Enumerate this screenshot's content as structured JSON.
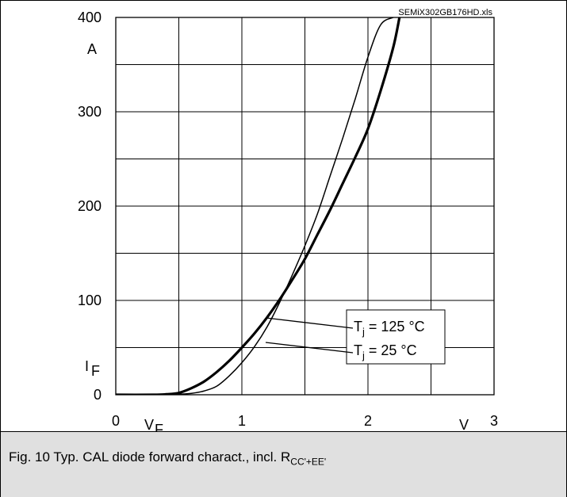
{
  "chart_data": {
    "type": "line",
    "source_file": "SEMiX302GB176HD.xls",
    "xlabel": "V",
    "xlabel_symbol": "V",
    "xlabel_sub": "F",
    "ylabel": "A",
    "ylabel_symbol": "I",
    "ylabel_sub": "F",
    "xlim": [
      0,
      3
    ],
    "ylim": [
      0,
      400
    ],
    "x_ticks": [
      "0",
      "1",
      "2",
      "3"
    ],
    "y_ticks": [
      "0",
      "100",
      "200",
      "300",
      "400"
    ],
    "grid": true,
    "series": [
      {
        "name": "Tj = 125 °C",
        "label_pre": "T",
        "label_sub": "j",
        "label_post": " = 125 °C",
        "line_weight": "thick",
        "x": [
          0,
          0.3,
          0.4,
          0.5,
          0.6,
          0.7,
          0.8,
          0.9,
          1.0,
          1.1,
          1.2,
          1.3,
          1.4,
          1.5,
          1.6,
          1.7,
          1.8,
          1.9,
          2.0,
          2.1,
          2.2,
          2.25
        ],
        "y": [
          0,
          0,
          0.5,
          2,
          7,
          14,
          24,
          36,
          50,
          65,
          82,
          101,
          122,
          144,
          170,
          196,
          224,
          252,
          282,
          322,
          368,
          400
        ]
      },
      {
        "name": "Tj = 25 °C",
        "label_pre": "T",
        "label_sub": "j",
        "label_post": " = 25 °C",
        "line_weight": "thin",
        "x": [
          0,
          0.4,
          0.5,
          0.6,
          0.7,
          0.8,
          0.9,
          1.0,
          1.1,
          1.2,
          1.3,
          1.4,
          1.5,
          1.6,
          1.7,
          1.8,
          1.9,
          2.0,
          2.1,
          2.2
        ],
        "y": [
          0,
          0,
          0.5,
          1.5,
          4,
          9,
          20,
          34,
          51,
          72,
          98,
          127,
          158,
          192,
          232,
          272,
          314,
          358,
          392,
          400
        ]
      }
    ]
  },
  "caption": {
    "text": "Fig. 10 Typ. CAL diode forward charact., incl. R",
    "sub": "CC'+EE'"
  }
}
